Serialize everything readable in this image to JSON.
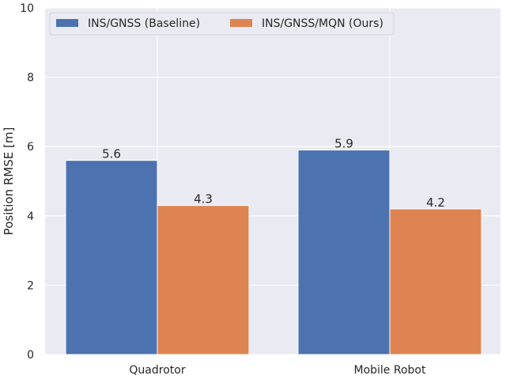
{
  "chart_data": {
    "type": "bar",
    "categories": [
      "Quadrotor",
      "Mobile Robot"
    ],
    "series": [
      {
        "name": "INS/GNSS (Baseline)",
        "values": [
          5.6,
          5.9
        ],
        "color": "#4c72b0"
      },
      {
        "name": "INS/GNSS/MQN (Ours)",
        "values": [
          4.3,
          4.2
        ],
        "color": "#dd8452"
      }
    ],
    "ylabel": "Position RMSE [m]",
    "xlabel": "",
    "ylim": [
      0,
      10
    ],
    "yticks": [
      0,
      2,
      4,
      6,
      8,
      10
    ],
    "data_labels": true,
    "grid": true,
    "legend_position": "top-left",
    "plot_background": "#eaeaf2",
    "grid_color": "#ffffff"
  }
}
